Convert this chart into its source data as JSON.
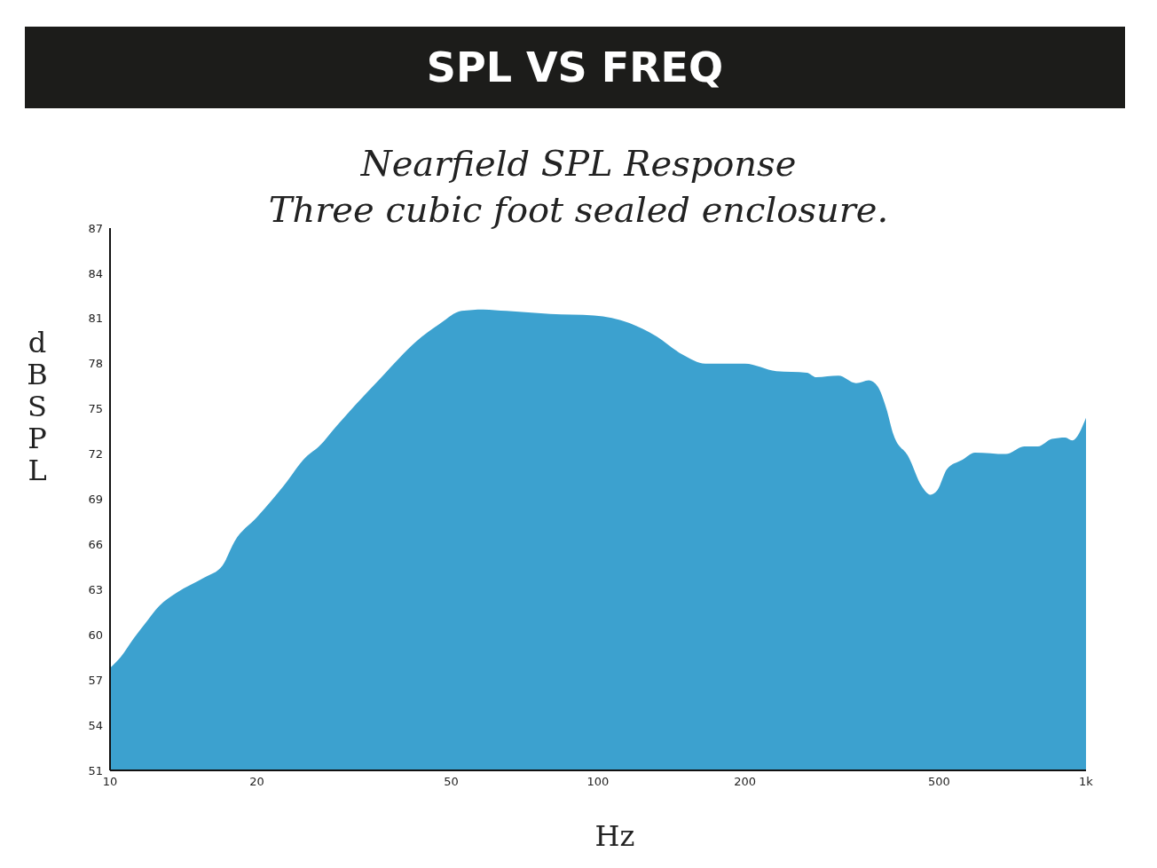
{
  "chart_data": {
    "type": "area",
    "title": "SPL VS FREQ",
    "subtitle": "Nearfield SPL Response\nThree cubic foot sealed enclosure.",
    "xlabel": "Hz",
    "ylabel": "dBSPL",
    "log": "x",
    "x": [
      10,
      10.5,
      11.2,
      11.9,
      12.6,
      13.7,
      15.6,
      17,
      18,
      20,
      22.7,
      25.2,
      26.8,
      29.2,
      31.7,
      36,
      42.5,
      47.2,
      52.5,
      58.2,
      64.9,
      79.8,
      98.2,
      116,
      132,
      149,
      166,
      200,
      232,
      268,
      280,
      311,
      338,
      359,
      374,
      390,
      403,
      433,
      460,
      480,
      496,
      519,
      557,
      592,
      685,
      748,
      797,
      851,
      907,
      937,
      1000
    ],
    "series": [
      {
        "color": "#3ca1cf",
        "values": [
          57.8,
          58.5,
          59.8,
          60.9,
          61.9,
          62.8,
          63.8,
          64.6,
          66.2,
          67.8,
          69.9,
          71.8,
          72.5,
          73.9,
          75.2,
          77.1,
          79.5,
          80.6,
          81.5,
          81.6,
          81.5,
          81.3,
          81.2,
          80.7,
          79.8,
          78.6,
          78,
          78,
          77.5,
          77.4,
          77.1,
          77.2,
          76.7,
          76.9,
          76.5,
          75,
          73.3,
          71.8,
          69.9,
          69.3,
          69.6,
          71,
          71.6,
          72.1,
          72,
          72.5,
          72.5,
          73,
          73.1,
          72.9,
          74.4
        ]
      }
    ],
    "xlim": [
      10,
      1000
    ],
    "xticks": [
      10,
      20,
      50,
      100,
      200,
      500,
      {
        "value": 1000,
        "label": "1k"
      }
    ],
    "ylim": [
      51,
      87
    ],
    "yticks": [
      51,
      54,
      57,
      60,
      63,
      66,
      69,
      72,
      75,
      78,
      81,
      84,
      87
    ]
  }
}
